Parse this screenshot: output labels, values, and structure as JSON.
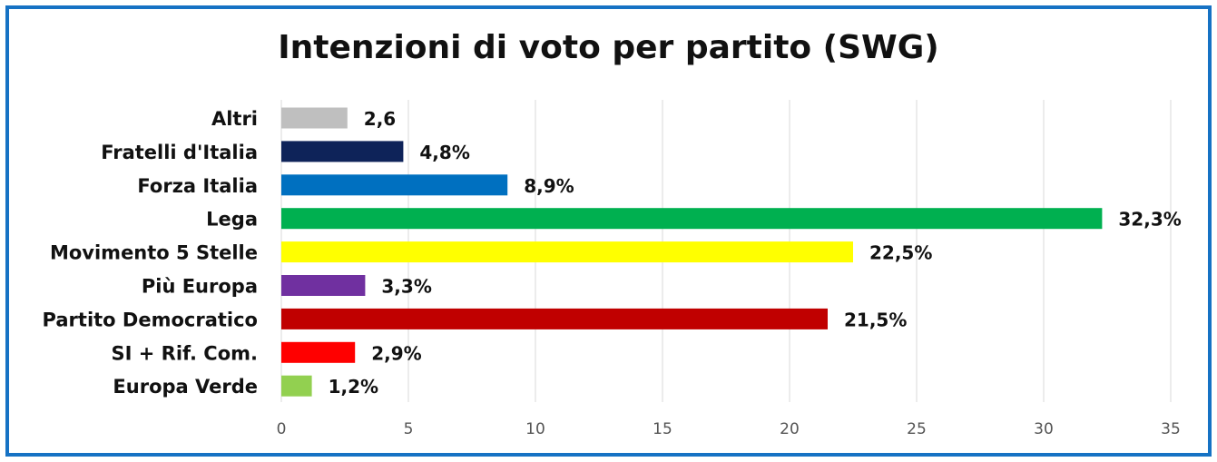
{
  "chart_data": {
    "type": "bar",
    "orientation": "horizontal",
    "title": "Intenzioni di voto per partito (SWG)",
    "xlabel": "",
    "ylabel": "",
    "xlim": [
      0,
      35
    ],
    "xticks": [
      "0",
      "5",
      "10",
      "15",
      "20",
      "25",
      "30",
      "35"
    ],
    "grid": true,
    "legend": "none",
    "categories": [
      "Altri",
      "Fratelli d'Italia",
      "Forza Italia",
      "Lega",
      "Movimento 5 Stelle",
      "Più Europa",
      "Partito Democratico",
      "SI + Rif. Com.",
      "Europa Verde"
    ],
    "values": [
      2.6,
      4.8,
      8.9,
      32.3,
      22.5,
      3.3,
      21.5,
      2.9,
      1.2
    ],
    "data_labels": [
      "2,6",
      "4,8%",
      "8,9%",
      "32,3%",
      "22,5%",
      "3,3%",
      "21,5%",
      "2,9%",
      "1,2%"
    ],
    "colors": [
      "#bfbfbf",
      "#0e2359",
      "#0070c0",
      "#00b050",
      "#ffff00",
      "#7030a0",
      "#c00000",
      "#ff0000",
      "#92d050"
    ]
  },
  "frame_color": "#1672c4"
}
